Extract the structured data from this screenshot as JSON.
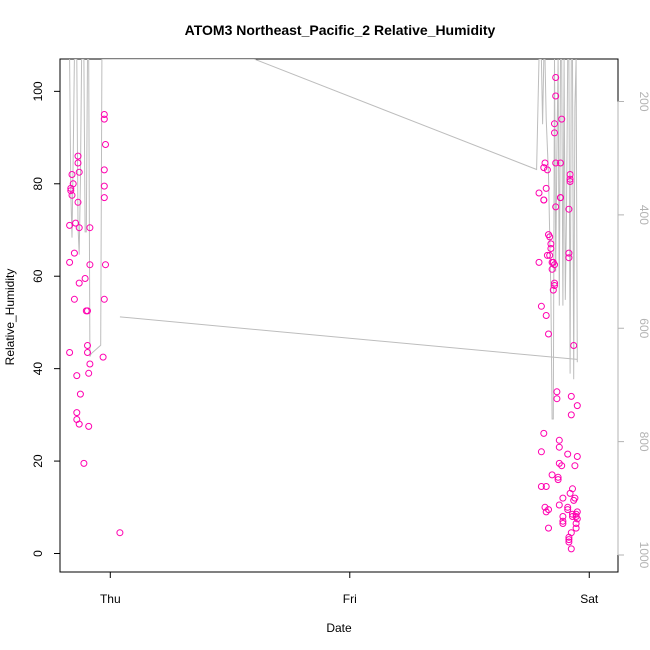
{
  "chart_data": {
    "type": "scatter",
    "title": "ATOM3 Northeast_Pacific_2 Relative_Humidity",
    "xlabel": "Date",
    "ylabel": "Relative_Humidity",
    "x_ticks": [
      {
        "label": "Thu",
        "x": 0.0
      },
      {
        "label": "Fri",
        "x": 1.0
      },
      {
        "label": "Sat",
        "x": 2.0
      }
    ],
    "xlim": [
      -0.21,
      2.12
    ],
    "ylim": [
      -4,
      107
    ],
    "y_ticks": [
      0,
      20,
      40,
      60,
      80,
      100
    ],
    "y2_ticks": [
      200,
      400,
      600,
      800,
      1000
    ],
    "y2lim": [
      1030,
      125
    ],
    "grid": false,
    "legend": "none",
    "point_color": "#ff00b0",
    "profile_color": "#bdbdbd",
    "series": [
      {
        "values": [
          [
            -0.17,
            43.5
          ],
          [
            -0.17,
            63.0
          ],
          [
            -0.17,
            71.0
          ],
          [
            -0.165,
            78.5
          ],
          [
            -0.165,
            79.0
          ],
          [
            -0.16,
            82.0
          ],
          [
            -0.16,
            77.5
          ],
          [
            -0.155,
            80.0
          ],
          [
            -0.15,
            65.0
          ],
          [
            -0.15,
            55.0
          ],
          [
            -0.145,
            71.5
          ],
          [
            -0.14,
            38.5
          ],
          [
            -0.14,
            30.5
          ],
          [
            -0.14,
            29.0
          ],
          [
            -0.135,
            76.0
          ],
          [
            -0.135,
            84.5
          ],
          [
            -0.135,
            86.0
          ],
          [
            -0.13,
            82.5
          ],
          [
            -0.13,
            70.5
          ],
          [
            -0.13,
            58.5
          ],
          [
            -0.13,
            28.0
          ],
          [
            -0.125,
            34.5
          ],
          [
            -0.11,
            19.5
          ],
          [
            -0.105,
            59.5
          ],
          [
            -0.1,
            52.5
          ],
          [
            -0.095,
            52.5
          ],
          [
            -0.095,
            45.0
          ],
          [
            -0.095,
            43.5
          ],
          [
            -0.09,
            39.0
          ],
          [
            -0.09,
            27.5
          ],
          [
            -0.085,
            62.5
          ],
          [
            -0.085,
            41.0
          ],
          [
            -0.085,
            70.5
          ],
          [
            -0.03,
            42.5
          ],
          [
            -0.025,
            55.0
          ],
          [
            -0.025,
            77.0
          ],
          [
            -0.025,
            79.5
          ],
          [
            -0.025,
            83.0
          ],
          [
            -0.02,
            88.5
          ],
          [
            -0.025,
            94.0
          ],
          [
            -0.025,
            95.0
          ],
          [
            -0.02,
            62.5
          ],
          [
            0.04,
            4.5
          ],
          [
            1.79,
            78.0
          ],
          [
            1.79,
            63.0
          ],
          [
            1.8,
            53.5
          ],
          [
            1.8,
            22.0
          ],
          [
            1.8,
            14.5
          ],
          [
            1.81,
            26.0
          ],
          [
            1.81,
            76.5
          ],
          [
            1.81,
            76.5
          ],
          [
            1.81,
            83.5
          ],
          [
            1.815,
            84.5
          ],
          [
            1.815,
            10.0
          ],
          [
            1.82,
            9.0
          ],
          [
            1.82,
            14.5
          ],
          [
            1.82,
            51.5
          ],
          [
            1.82,
            79.0
          ],
          [
            1.825,
            83.0
          ],
          [
            1.825,
            64.5
          ],
          [
            1.83,
            69.0
          ],
          [
            1.83,
            47.5
          ],
          [
            1.83,
            5.5
          ],
          [
            1.83,
            9.5
          ],
          [
            1.835,
            64.5
          ],
          [
            1.835,
            68.5
          ],
          [
            1.84,
            66.0
          ],
          [
            1.84,
            67.0
          ],
          [
            1.845,
            61.5
          ],
          [
            1.845,
            63.0
          ],
          [
            1.845,
            17.0
          ],
          [
            1.85,
            57.0
          ],
          [
            1.85,
            63.0
          ],
          [
            1.855,
            58.5
          ],
          [
            1.855,
            58.0
          ],
          [
            1.855,
            62.5
          ],
          [
            1.855,
            91.0
          ],
          [
            1.855,
            93.0
          ],
          [
            1.86,
            99.0
          ],
          [
            1.86,
            103.0
          ],
          [
            1.86,
            84.5
          ],
          [
            1.86,
            75.0
          ],
          [
            1.865,
            33.5
          ],
          [
            1.865,
            35.0
          ],
          [
            1.87,
            16.5
          ],
          [
            1.87,
            16.0
          ],
          [
            1.875,
            19.5
          ],
          [
            1.875,
            24.5
          ],
          [
            1.875,
            23.0
          ],
          [
            1.875,
            10.5
          ],
          [
            1.88,
            77.0
          ],
          [
            1.88,
            77.0
          ],
          [
            1.88,
            84.5
          ],
          [
            1.885,
            94.0
          ],
          [
            1.885,
            19.0
          ],
          [
            1.89,
            6.5
          ],
          [
            1.89,
            8.0
          ],
          [
            1.89,
            7.0
          ],
          [
            1.89,
            12.0
          ],
          [
            1.91,
            10.0
          ],
          [
            1.91,
            9.5
          ],
          [
            1.91,
            21.5
          ],
          [
            1.915,
            3.0
          ],
          [
            1.915,
            2.5
          ],
          [
            1.915,
            3.5
          ],
          [
            1.915,
            64.0
          ],
          [
            1.915,
            65.0
          ],
          [
            1.915,
            74.5
          ],
          [
            1.92,
            80.5
          ],
          [
            1.92,
            81.0
          ],
          [
            1.92,
            82.0
          ],
          [
            1.92,
            13.0
          ],
          [
            1.925,
            1.0
          ],
          [
            1.925,
            4.5
          ],
          [
            1.925,
            34.0
          ],
          [
            1.925,
            30.0
          ],
          [
            1.93,
            14.0
          ],
          [
            1.93,
            8.5
          ],
          [
            1.93,
            8.0
          ],
          [
            1.935,
            45.0
          ],
          [
            1.935,
            11.5
          ],
          [
            1.94,
            19.0
          ],
          [
            1.94,
            12.0
          ],
          [
            1.945,
            8.5
          ],
          [
            1.945,
            6.5
          ],
          [
            1.945,
            5.5
          ],
          [
            1.945,
            8.0
          ],
          [
            1.95,
            9.0
          ],
          [
            1.95,
            7.5
          ],
          [
            1.95,
            32.0
          ],
          [
            1.95,
            21.0
          ]
        ]
      },
      {
        "axis": "right",
        "values": [
          [
            -0.17,
            125
          ],
          [
            -0.165,
            360
          ],
          [
            -0.16,
            440
          ],
          [
            -0.155,
            300
          ],
          [
            -0.15,
            125
          ],
          [
            -0.14,
            125
          ],
          [
            -0.135,
            420
          ],
          [
            -0.13,
            470
          ],
          [
            -0.125,
            340
          ],
          [
            -0.12,
            125
          ],
          [
            -0.11,
            125
          ],
          [
            -0.105,
            430
          ],
          [
            -0.1,
            430
          ],
          [
            -0.095,
            125
          ],
          [
            -0.09,
            125
          ],
          [
            -0.085,
            650
          ],
          [
            -0.08,
            645
          ],
          [
            -0.04,
            630
          ],
          [
            -0.035,
            125
          ],
          [
            -0.03,
            125
          ],
          [
            0.6,
            125
          ],
          [
            1.78,
            320
          ],
          [
            1.79,
            125
          ],
          [
            1.8,
            125
          ],
          [
            1.805,
            240
          ],
          [
            1.81,
            125
          ],
          [
            1.815,
            125
          ],
          [
            1.82,
            230
          ],
          [
            1.83,
            330
          ],
          [
            1.84,
            540
          ],
          [
            1.845,
            760
          ],
          [
            1.85,
            760
          ],
          [
            1.855,
            125
          ],
          [
            1.86,
            500
          ],
          [
            1.865,
            290
          ],
          [
            1.87,
            125
          ],
          [
            1.875,
            560
          ],
          [
            1.88,
            125
          ],
          [
            1.885,
            125
          ],
          [
            1.89,
            560
          ],
          [
            1.895,
            125
          ],
          [
            1.9,
            550
          ],
          [
            1.905,
            400
          ],
          [
            1.91,
            125
          ],
          [
            1.915,
            125
          ],
          [
            1.92,
            680
          ],
          [
            1.925,
            125
          ],
          [
            1.93,
            125
          ],
          [
            1.935,
            690
          ],
          [
            1.94,
            210
          ],
          [
            1.945,
            125
          ],
          [
            1.95,
            660
          ]
        ]
      },
      {
        "axis": "right",
        "values": [
          [
            0.04,
            580
          ],
          [
            1.95,
            655
          ]
        ]
      }
    ]
  }
}
